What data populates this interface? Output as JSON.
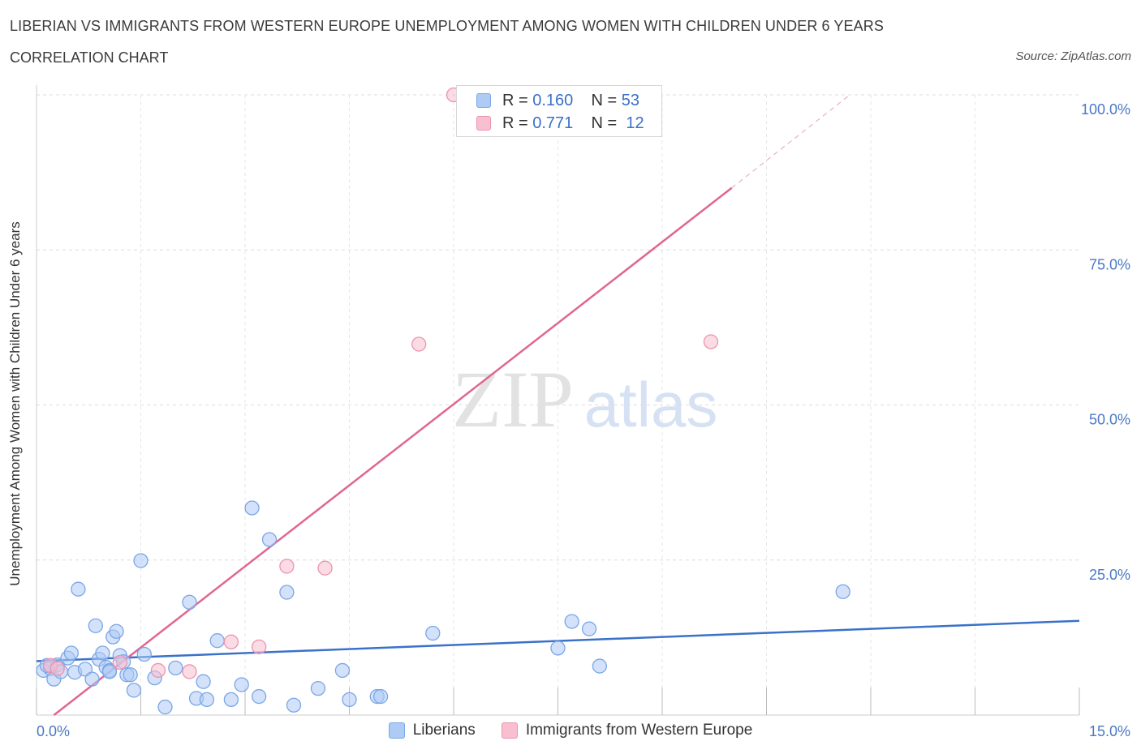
{
  "header": {
    "title": "LIBERIAN VS IMMIGRANTS FROM WESTERN EUROPE UNEMPLOYMENT AMONG WOMEN WITH CHILDREN UNDER 6 YEARS",
    "subtitle": "CORRELATION CHART",
    "source": "Source: ZipAtlas.com"
  },
  "watermark": {
    "zip": "ZIP",
    "atlas": "atlas"
  },
  "legend": {
    "r_label": "R =",
    "n_label": "N =",
    "series": [
      {
        "name": "Liberians",
        "r": "0.160",
        "n": "53",
        "fill": "#aecbf5",
        "stroke": "#7aa6e6"
      },
      {
        "name": "Immigrants from Western Europe",
        "r": "0.771",
        "n": "12",
        "fill": "#f7bfd0",
        "stroke": "#ec93b0"
      }
    ]
  },
  "chart_data": {
    "type": "scatter",
    "title": "LIBERIAN VS IMMIGRANTS FROM WESTERN EUROPE UNEMPLOYMENT AMONG WOMEN WITH CHILDREN UNDER 6 YEARS",
    "xlabel": "",
    "ylabel": "Unemployment Among Women with Children Under 6 years",
    "xlim": [
      0,
      15
    ],
    "ylim": [
      0,
      100
    ],
    "x_tick_labels": [
      "0.0%",
      "15.0%"
    ],
    "y_ticks": [
      25,
      50,
      75,
      100
    ],
    "y_tick_labels": [
      "25.0%",
      "50.0%",
      "75.0%",
      "100.0%"
    ],
    "grid": true,
    "series": [
      {
        "name": "Liberians",
        "color": "#3a72c9",
        "trend": {
          "x": [
            0,
            15
          ],
          "y": [
            8.7,
            15.2
          ]
        },
        "points": [
          [
            0.1,
            7.2
          ],
          [
            0.2,
            7.5
          ],
          [
            0.25,
            5.8
          ],
          [
            0.3,
            8.1
          ],
          [
            0.35,
            7.0
          ],
          [
            0.45,
            9.2
          ],
          [
            0.5,
            10.0
          ],
          [
            0.55,
            6.9
          ],
          [
            0.6,
            20.3
          ],
          [
            0.7,
            7.4
          ],
          [
            0.8,
            5.8
          ],
          [
            0.85,
            14.4
          ],
          [
            0.9,
            9.0
          ],
          [
            0.95,
            10.0
          ],
          [
            1.0,
            7.7
          ],
          [
            1.05,
            7.2
          ],
          [
            1.1,
            12.6
          ],
          [
            1.15,
            13.5
          ],
          [
            1.2,
            9.6
          ],
          [
            1.25,
            8.6
          ],
          [
            1.3,
            6.5
          ],
          [
            1.35,
            6.5
          ],
          [
            1.4,
            4.0
          ],
          [
            1.5,
            24.9
          ],
          [
            1.55,
            9.8
          ],
          [
            1.7,
            6.0
          ],
          [
            1.85,
            1.3
          ],
          [
            2.0,
            7.6
          ],
          [
            2.2,
            18.2
          ],
          [
            2.3,
            2.7
          ],
          [
            2.4,
            5.4
          ],
          [
            2.45,
            2.5
          ],
          [
            2.6,
            12.0
          ],
          [
            2.8,
            2.5
          ],
          [
            2.95,
            4.9
          ],
          [
            3.1,
            33.4
          ],
          [
            3.2,
            3.0
          ],
          [
            3.35,
            28.3
          ],
          [
            3.6,
            19.8
          ],
          [
            3.7,
            1.6
          ],
          [
            4.05,
            4.3
          ],
          [
            4.4,
            7.2
          ],
          [
            4.5,
            2.5
          ],
          [
            4.9,
            3.0
          ],
          [
            4.95,
            3.0
          ],
          [
            5.7,
            13.2
          ],
          [
            7.5,
            10.8
          ],
          [
            7.7,
            15.1
          ],
          [
            7.95,
            13.9
          ],
          [
            8.1,
            7.9
          ],
          [
            11.6,
            19.9
          ],
          [
            0.15,
            8.0
          ],
          [
            1.05,
            7.0
          ]
        ]
      },
      {
        "name": "Immigrants from Western Europe",
        "color": "#e0668f",
        "trend": {
          "x": [
            0.25,
            10.0
          ],
          "y": [
            0.0,
            85.0
          ]
        },
        "trend_dashed": {
          "x": [
            10.0,
            11.7
          ],
          "y": [
            85.0,
            100.0
          ]
        },
        "points": [
          [
            0.2,
            8.0
          ],
          [
            0.3,
            7.5
          ],
          [
            1.2,
            8.5
          ],
          [
            1.75,
            7.2
          ],
          [
            2.2,
            7.0
          ],
          [
            2.8,
            11.8
          ],
          [
            3.2,
            11.0
          ],
          [
            3.6,
            24.0
          ],
          [
            4.15,
            23.7
          ],
          [
            5.5,
            59.8
          ],
          [
            6.0,
            100.0
          ],
          [
            9.7,
            60.2
          ]
        ]
      }
    ]
  }
}
